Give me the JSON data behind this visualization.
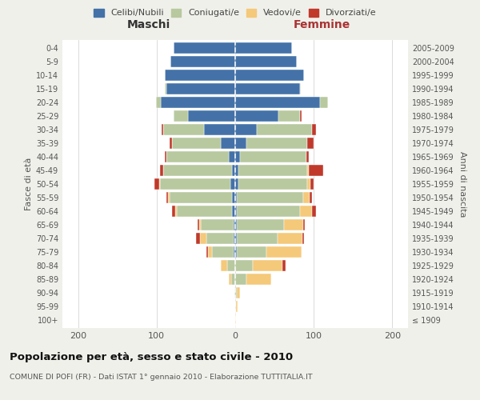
{
  "age_groups": [
    "100+",
    "95-99",
    "90-94",
    "85-89",
    "80-84",
    "75-79",
    "70-74",
    "65-69",
    "60-64",
    "55-59",
    "50-54",
    "45-49",
    "40-44",
    "35-39",
    "30-34",
    "25-29",
    "20-24",
    "15-19",
    "10-14",
    "5-9",
    "0-4"
  ],
  "birth_years": [
    "≤ 1909",
    "1910-1914",
    "1915-1919",
    "1920-1924",
    "1925-1929",
    "1930-1934",
    "1935-1939",
    "1940-1944",
    "1945-1949",
    "1950-1954",
    "1955-1959",
    "1960-1964",
    "1965-1969",
    "1970-1974",
    "1975-1979",
    "1980-1984",
    "1985-1989",
    "1990-1994",
    "1995-1999",
    "2000-2004",
    "2005-2009"
  ],
  "colors": {
    "celibi": "#4472a8",
    "coniugati": "#b8c9a0",
    "vedovi": "#f5c97a",
    "divorziati": "#c0392b"
  },
  "maschi": {
    "celibi": [
      0,
      0,
      0,
      0,
      0,
      2,
      2,
      2,
      4,
      4,
      6,
      4,
      8,
      18,
      40,
      60,
      95,
      88,
      90,
      82,
      78
    ],
    "coniugati": [
      0,
      0,
      1,
      5,
      10,
      28,
      35,
      42,
      70,
      80,
      90,
      88,
      80,
      62,
      52,
      18,
      6,
      2,
      0,
      0,
      0
    ],
    "vedovi": [
      0,
      0,
      0,
      3,
      8,
      5,
      8,
      2,
      2,
      2,
      1,
      0,
      0,
      0,
      0,
      0,
      0,
      0,
      0,
      0,
      0
    ],
    "divorziati": [
      0,
      0,
      0,
      0,
      0,
      2,
      5,
      2,
      4,
      2,
      6,
      4,
      2,
      4,
      2,
      0,
      0,
      0,
      0,
      0,
      0
    ]
  },
  "femmine": {
    "celibi": [
      0,
      0,
      0,
      0,
      0,
      2,
      2,
      2,
      2,
      2,
      4,
      4,
      6,
      14,
      28,
      55,
      108,
      82,
      88,
      78,
      72
    ],
    "coniugati": [
      0,
      1,
      2,
      14,
      22,
      38,
      52,
      60,
      80,
      85,
      88,
      88,
      85,
      78,
      70,
      28,
      10,
      2,
      0,
      0,
      0
    ],
    "vedovi": [
      1,
      2,
      4,
      32,
      38,
      45,
      32,
      25,
      16,
      8,
      4,
      2,
      0,
      0,
      0,
      0,
      0,
      0,
      0,
      0,
      0
    ],
    "divorziati": [
      0,
      0,
      0,
      0,
      4,
      0,
      2,
      2,
      5,
      3,
      4,
      18,
      3,
      8,
      5,
      2,
      0,
      0,
      0,
      0,
      0
    ]
  },
  "xlim": 220,
  "title": "Popolazione per età, sesso e stato civile - 2010",
  "subtitle": "COMUNE DI POFI (FR) - Dati ISTAT 1° gennaio 2010 - Elaborazione TUTTITALIA.IT",
  "ylabel_left": "Fasce di età",
  "ylabel_right": "Anni di nascita",
  "xlabel_left": "Maschi",
  "xlabel_right": "Femmine",
  "legend_labels": [
    "Celibi/Nubili",
    "Coniugati/e",
    "Vedovi/e",
    "Divorziati/e"
  ],
  "background_color": "#f0f0eb",
  "plot_bg": "#ffffff"
}
